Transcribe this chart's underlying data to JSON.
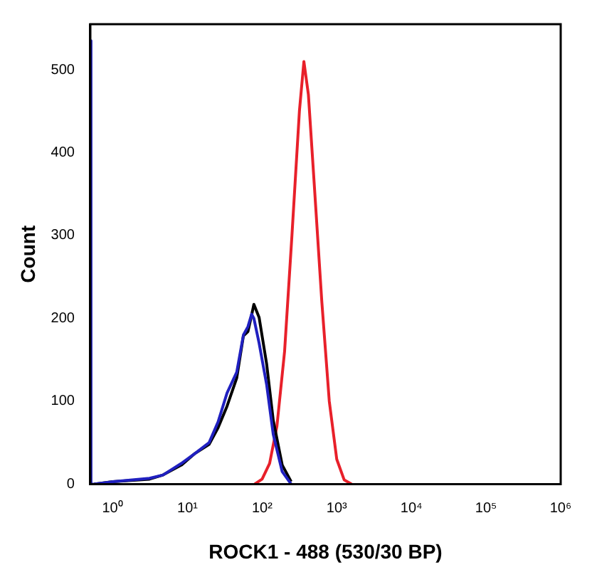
{
  "chart_data": {
    "type": "line",
    "xlabel": "ROCK1 - 488 (530/30 BP)",
    "ylabel": "Count",
    "log": "x",
    "grid": false,
    "legend": false,
    "marker": "none",
    "line_style": "solid",
    "xlim": [
      0.5,
      1000000
    ],
    "xticks": [
      {
        "value": 1,
        "label": "10⁰"
      },
      {
        "value": 10,
        "label": "10¹"
      },
      {
        "value": 100,
        "label": "10²"
      },
      {
        "value": 1000,
        "label": "10³"
      },
      {
        "value": 10000,
        "label": "10⁴"
      },
      {
        "value": 100000,
        "label": "10⁵"
      },
      {
        "value": 1000000,
        "label": "10⁶"
      }
    ],
    "ylim": [
      0,
      555
    ],
    "yticks": [
      0,
      100,
      200,
      300,
      400,
      500
    ],
    "series": [
      {
        "color": "#2020c0",
        "x": [
          0.5,
          0.51,
          0.56,
          1,
          3.1,
          4.7,
          8.3,
          12.6,
          19.5,
          25.7,
          33.9,
          45.7,
          56.2,
          64.6,
          72.4,
          77.6,
          91.2,
          115,
          141,
          186,
          245
        ],
        "values": [
          535,
          0,
          0,
          3,
          7,
          11,
          25,
          37,
          50,
          75,
          110,
          135,
          180,
          190,
          205,
          200,
          170,
          120,
          60,
          15,
          0
        ]
      },
      {
        "color": "#000000",
        "x": [
          0.56,
          1,
          3.1,
          4.7,
          8.3,
          12.6,
          19.5,
          25.7,
          33.9,
          45.7,
          56.2,
          64.6,
          72.4,
          77.6,
          91.2,
          115,
          141,
          186,
          245
        ],
        "values": [
          0,
          3,
          6,
          11,
          23,
          37,
          48,
          68,
          94,
          128,
          179,
          184,
          204,
          217,
          201,
          145,
          77,
          23,
          3
        ]
      },
      {
        "color": "#e8202a",
        "x": [
          79.4,
          100,
          126,
          158,
          200,
          251,
          316,
          363,
          417,
          501,
          631,
          794,
          1000,
          1259,
          1585
        ],
        "values": [
          0,
          6,
          25,
          70,
          160,
          300,
          450,
          510,
          470,
          360,
          220,
          100,
          30,
          5,
          0
        ]
      }
    ]
  }
}
